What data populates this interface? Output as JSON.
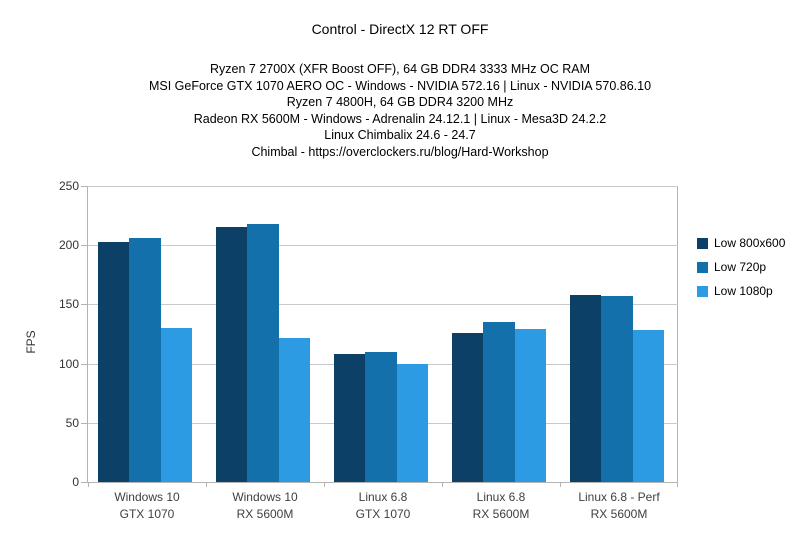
{
  "chart_data": {
    "type": "bar",
    "title": "Control - DirectX 12 RT OFF",
    "subtitle_lines": [
      "Ryzen 7 2700X (XFR Boost OFF), 64 GB DDR4 3333 MHz OC RAM",
      "MSI GeForce GTX 1070 AERO OC - Windows - NVIDIA 572.16 | Linux - NVIDIA 570.86.10",
      "Ryzen 7 4800H, 64 GB DDR4 3200 MHz",
      "Radeon RX 5600M - Windows - Adrenalin 24.12.1 | Linux - Mesa3D 24.2.2",
      "Linux Chimbalix 24.6 - 24.7",
      "Chimbal - https://overclockers.ru/blog/Hard-Workshop"
    ],
    "ylabel": "FPS",
    "ylim": [
      0,
      250
    ],
    "ytick_step": 50,
    "grid": true,
    "legend_position": "right",
    "categories": [
      [
        "Windows 10",
        "GTX 1070"
      ],
      [
        "Windows 10",
        "RX 5600M"
      ],
      [
        "Linux 6.8",
        "GTX 1070"
      ],
      [
        "Linux 6.8",
        "RX 5600M"
      ],
      [
        "Linux 6.8 - Perf",
        "RX 5600M"
      ]
    ],
    "series": [
      {
        "name": "Low 800x600",
        "color": "#0d4066",
        "values": [
          203,
          215,
          108,
          126,
          158
        ]
      },
      {
        "name": "Low 720p",
        "color": "#1470aa",
        "values": [
          206,
          218,
          110,
          135,
          157
        ]
      },
      {
        "name": "Low 1080p",
        "color": "#2d9be4",
        "values": [
          130,
          122,
          100,
          129,
          128
        ]
      }
    ],
    "axis_color": "#b3b3b3",
    "grid_color": "#c9c9c9"
  }
}
